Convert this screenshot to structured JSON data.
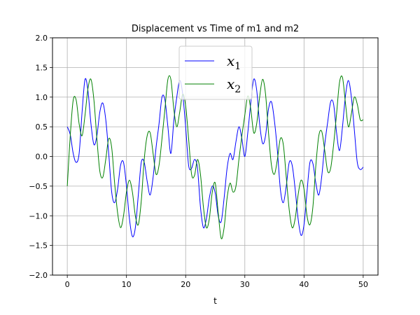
{
  "chart_data": {
    "type": "line",
    "title": "Displacement vs Time of m1 and m2",
    "xlabel": "t",
    "ylabel": "",
    "xlim": [
      -2.5,
      52.5
    ],
    "ylim": [
      -2.0,
      2.0
    ],
    "xticks": [
      0,
      10,
      20,
      30,
      40,
      50
    ],
    "xtick_labels": [
      "0",
      "10",
      "20",
      "30",
      "40",
      "50"
    ],
    "yticks": [
      -2.0,
      -1.5,
      -1.0,
      -0.5,
      0.0,
      0.5,
      1.0,
      1.5,
      2.0
    ],
    "ytick_labels": [
      "−2.0",
      "−1.5",
      "−1.0",
      "−0.5",
      "0.0",
      "0.5",
      "1.0",
      "1.5",
      "2.0"
    ],
    "grid": true,
    "legend_position": "top-center",
    "series": [
      {
        "name": "x",
        "name_subscript": "1",
        "color": "#0000ff",
        "x": [
          0,
          0.5,
          1,
          1.5,
          2,
          2.5,
          3,
          3.5,
          4,
          4.5,
          5,
          5.5,
          6,
          6.5,
          7,
          7.5,
          8,
          8.5,
          9,
          9.5,
          10,
          10.5,
          11,
          11.5,
          12,
          12.5,
          13,
          13.5,
          14,
          14.5,
          15,
          15.5,
          16,
          16.5,
          17,
          17.5,
          18,
          18.5,
          19,
          19.5,
          20,
          20.5,
          21,
          21.5,
          22,
          22.5,
          23,
          23.5,
          24,
          24.5,
          25,
          25.5,
          26,
          26.5,
          27,
          27.5,
          28,
          28.5,
          29,
          29.5,
          30,
          30.5,
          31,
          31.5,
          32,
          32.5,
          33,
          33.5,
          34,
          34.5,
          35,
          35.5,
          36,
          36.5,
          37,
          37.5,
          38,
          38.5,
          39,
          39.5,
          40,
          40.5,
          41,
          41.5,
          42,
          42.5,
          43,
          43.5,
          44,
          44.5,
          45,
          45.5,
          46,
          46.5,
          47,
          47.5,
          48,
          48.5,
          49,
          49.5,
          50
        ],
        "values": [
          0.5,
          0.37,
          0.05,
          -0.1,
          0.05,
          0.75,
          1.3,
          1.1,
          0.55,
          0.2,
          0.35,
          0.75,
          0.9,
          0.62,
          0.05,
          -0.6,
          -0.78,
          -0.55,
          -0.15,
          -0.1,
          -0.5,
          -1.05,
          -1.35,
          -1.2,
          -0.65,
          -0.1,
          -0.1,
          -0.42,
          -0.65,
          -0.35,
          0.15,
          0.55,
          1.0,
          0.95,
          0.5,
          0.05,
          0.6,
          1.0,
          1.28,
          1.05,
          0.5,
          -0.15,
          -0.2,
          -0.05,
          -0.2,
          -0.85,
          -1.2,
          -1.05,
          -0.7,
          -0.5,
          -0.62,
          -1.0,
          -1.1,
          -0.7,
          -0.2,
          0.05,
          -0.05,
          0.25,
          0.5,
          0.3,
          0.0,
          0.4,
          0.9,
          1.3,
          1.12,
          0.55,
          0.22,
          0.35,
          0.8,
          0.92,
          0.6,
          0.1,
          -0.55,
          -0.78,
          -0.5,
          -0.1,
          -0.15,
          -0.55,
          -1.05,
          -1.33,
          -1.15,
          -0.6,
          -0.1,
          -0.12,
          -0.45,
          -0.65,
          -0.33,
          0.2,
          0.58,
          0.92,
          0.88,
          0.4,
          0.1,
          0.5,
          1.02,
          1.28,
          1.0,
          0.45,
          -0.1,
          -0.22,
          -0.18
        ]
      },
      {
        "name": "x",
        "name_subscript": "2",
        "color": "#008000",
        "x": [
          0,
          0.5,
          1,
          1.5,
          2,
          2.5,
          3,
          3.5,
          4,
          4.5,
          5,
          5.5,
          6,
          6.5,
          7,
          7.5,
          8,
          8.5,
          9,
          9.5,
          10,
          10.5,
          11,
          11.5,
          12,
          12.5,
          13,
          13.5,
          14,
          14.5,
          15,
          15.5,
          16,
          16.5,
          17,
          17.5,
          18,
          18.5,
          19,
          19.5,
          20,
          20.5,
          21,
          21.5,
          22,
          22.5,
          23,
          23.5,
          24,
          24.5,
          25,
          25.5,
          26,
          26.5,
          27,
          27.5,
          28,
          28.5,
          29,
          29.5,
          30,
          30.5,
          31,
          31.5,
          32,
          32.5,
          33,
          33.5,
          34,
          34.5,
          35,
          35.5,
          36,
          36.5,
          37,
          37.5,
          38,
          38.5,
          39,
          39.5,
          40,
          40.5,
          41,
          41.5,
          42,
          42.5,
          43,
          43.5,
          44,
          44.5,
          45,
          45.5,
          46,
          46.5,
          47,
          47.5,
          48,
          48.5,
          49,
          49.5,
          50
        ],
        "values": [
          -0.5,
          0.35,
          0.95,
          0.95,
          0.55,
          0.35,
          0.7,
          1.15,
          1.3,
          0.95,
          0.3,
          -0.25,
          -0.35,
          -0.05,
          0.3,
          0.15,
          -0.45,
          -0.95,
          -1.2,
          -1.0,
          -0.6,
          -0.4,
          -0.6,
          -1.0,
          -1.15,
          -0.75,
          -0.05,
          0.35,
          0.4,
          0.05,
          -0.3,
          -0.15,
          0.3,
          0.8,
          1.3,
          1.3,
          0.8,
          0.5,
          0.75,
          1.05,
          0.85,
          0.3,
          -0.3,
          -0.32,
          -0.05,
          -0.3,
          -0.85,
          -1.2,
          -1.05,
          -0.6,
          -0.45,
          -0.95,
          -1.38,
          -1.2,
          -0.7,
          -0.45,
          -0.6,
          -0.5,
          -0.05,
          0.35,
          0.7,
          1.02,
          0.8,
          0.4,
          0.55,
          1.0,
          1.3,
          1.05,
          0.4,
          -0.15,
          -0.3,
          -0.05,
          0.3,
          0.2,
          -0.35,
          -0.9,
          -1.2,
          -1.05,
          -0.65,
          -0.4,
          -0.55,
          -1.0,
          -1.15,
          -0.85,
          -0.15,
          0.35,
          0.42,
          0.1,
          -0.25,
          -0.2,
          0.2,
          0.72,
          1.25,
          1.33,
          0.9,
          0.5,
          0.72,
          1.0,
          0.88,
          0.62,
          0.62
        ]
      }
    ]
  }
}
